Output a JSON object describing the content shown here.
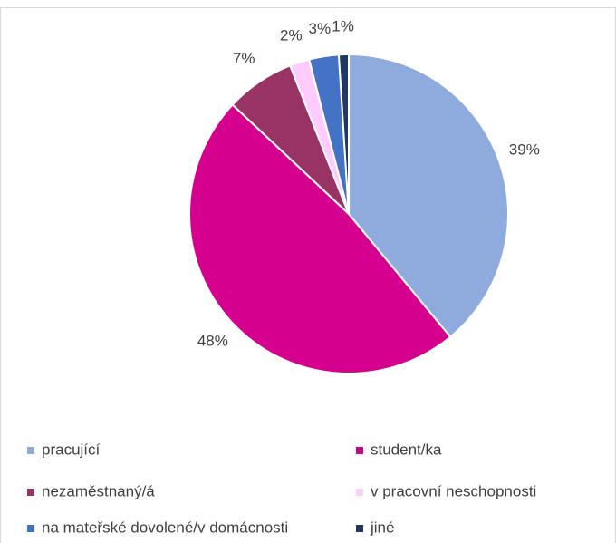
{
  "chart_data": {
    "type": "pie",
    "categories": [
      "pracující",
      "student/ka",
      "nezaměstnaný/á",
      "v pracovní neschopnosti",
      "na mateřské dovolené/v domácnosti",
      "jiné"
    ],
    "values": [
      39,
      48,
      7,
      2,
      3,
      1
    ],
    "value_labels": [
      "39%",
      "48%",
      "7%",
      "2%",
      "3%",
      "1%"
    ],
    "colors": [
      "#8faadc",
      "#d6008f",
      "#993366",
      "#ffccff",
      "#4472c4",
      "#1f3864"
    ],
    "legend": "bottom"
  }
}
